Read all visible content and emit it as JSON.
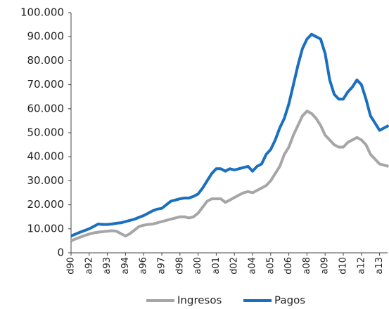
{
  "chart_data": {
    "type": "line",
    "categories": [
      "d90",
      null,
      null,
      null,
      "a92",
      null,
      null,
      null,
      "a93",
      null,
      null,
      null,
      "a94",
      null,
      null,
      null,
      "a96",
      null,
      null,
      null,
      "a97",
      null,
      null,
      null,
      "d98",
      null,
      null,
      null,
      "a00",
      null,
      null,
      null,
      "a01",
      null,
      null,
      null,
      "d02",
      null,
      null,
      null,
      "a04",
      null,
      null,
      null,
      "a05",
      null,
      null,
      null,
      "d06",
      null,
      null,
      null,
      "a08",
      null,
      null,
      null,
      "a09",
      null,
      null,
      null,
      "d10",
      null,
      null,
      null,
      "a12",
      null,
      null,
      null,
      "a13",
      null,
      null
    ],
    "series": [
      {
        "name": "Ingresos",
        "color": "#a6a6a6",
        "values": [
          5000,
          5800,
          6500,
          7200,
          7800,
          8300,
          8600,
          8800,
          9000,
          9200,
          9000,
          8000,
          7000,
          8000,
          9500,
          11000,
          11500,
          11800,
          12000,
          12500,
          13000,
          13500,
          14000,
          14500,
          15000,
          15000,
          14500,
          15000,
          16500,
          19000,
          21500,
          22500,
          22500,
          22500,
          21000,
          22000,
          23000,
          24000,
          25000,
          25500,
          25000,
          26000,
          27000,
          28000,
          30000,
          33000,
          36000,
          41000,
          44000,
          49000,
          53000,
          57000,
          59000,
          58000,
          56000,
          53000,
          49000,
          47000,
          45000,
          44000,
          44000,
          46000,
          47000,
          48000,
          47000,
          45000,
          41000,
          39000,
          37000,
          36500,
          36000
        ]
      },
      {
        "name": "Pagos",
        "color": "#1a6fbf",
        "values": [
          7000,
          7800,
          8600,
          9300,
          10000,
          11000,
          12000,
          11800,
          11800,
          12000,
          12300,
          12500,
          13000,
          13500,
          14000,
          14800,
          15500,
          16500,
          17500,
          18200,
          18500,
          20000,
          21500,
          22000,
          22500,
          22800,
          22800,
          23500,
          24500,
          27000,
          30000,
          33000,
          35000,
          35000,
          34000,
          35000,
          34500,
          35000,
          35500,
          36000,
          34000,
          36000,
          37000,
          41000,
          43000,
          47000,
          52000,
          56000,
          62000,
          70000,
          78000,
          85000,
          89000,
          91000,
          90000,
          89000,
          83000,
          72000,
          66000,
          64000,
          64000,
          67000,
          69000,
          72000,
          70000,
          64000,
          57000,
          54000,
          51000,
          52000,
          53000
        ]
      }
    ],
    "ylim": [
      0,
      100000
    ],
    "yticks": [
      0,
      {
        "value": 10000,
        "label": "10.000"
      },
      {
        "value": 20000,
        "label": "20.000"
      },
      {
        "value": 30000,
        "label": "30.000"
      },
      {
        "value": 40000,
        "label": "40.000"
      },
      {
        "value": 50000,
        "label": "50.000"
      },
      {
        "value": 60000,
        "label": "60.000"
      },
      {
        "value": 70000,
        "label": "70.000"
      },
      {
        "value": 80000,
        "label": "80.000"
      },
      {
        "value": 90000,
        "label": "90.000"
      },
      {
        "value": 100000,
        "label": "100.000"
      }
    ],
    "grid": false,
    "legend": "bottom"
  }
}
